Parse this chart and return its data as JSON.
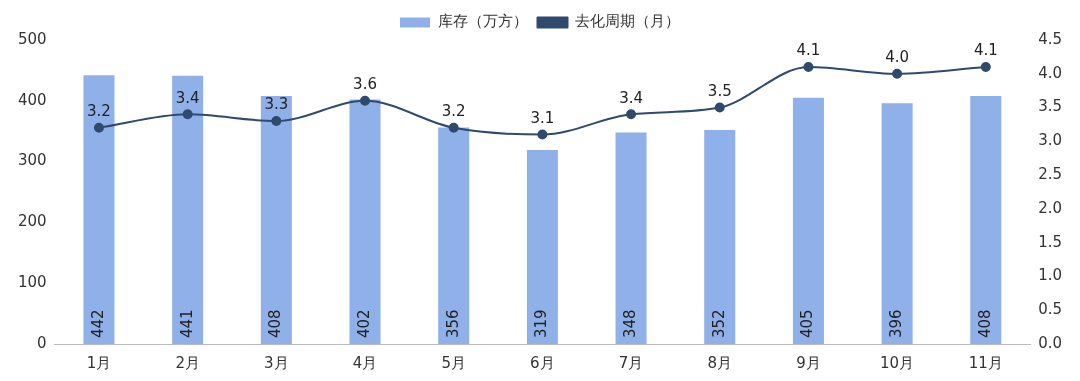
{
  "chart_data": {
    "type": "bar",
    "categories": [
      "1月",
      "2月",
      "3月",
      "4月",
      "5月",
      "6月",
      "7月",
      "8月",
      "9月",
      "10月",
      "11月"
    ],
    "series": [
      {
        "name": "库存（万方）",
        "color": "#8fb0e8",
        "values": [
          442,
          441,
          408,
          402,
          356,
          319,
          348,
          352,
          405,
          396,
          408
        ]
      },
      {
        "name": "去化周期（月）",
        "type": "line",
        "axis": "y2",
        "color": "#2f4a6d",
        "values": [
          3.2,
          3.4,
          3.3,
          3.6,
          3.2,
          3.1,
          3.4,
          3.5,
          4.1,
          4.0,
          4.1
        ],
        "value_labels": [
          "3.2",
          "3.4",
          "3.3",
          "3.6",
          "3.2",
          "3.1",
          "3.4",
          "3.5",
          "4.1",
          "4.0",
          "4.1"
        ]
      }
    ],
    "ylim": [
      0,
      500
    ],
    "yticks": [
      0,
      100,
      200,
      300,
      400,
      500
    ],
    "y2lim": [
      0,
      4.5
    ],
    "y2ticks": [
      {
        "value": 0,
        "label": "0.0"
      },
      {
        "value": 0.5,
        "label": "0.5"
      },
      {
        "value": 1,
        "label": "1.0"
      },
      {
        "value": 1.5,
        "label": "1.5"
      },
      {
        "value": 2,
        "label": "2.0"
      },
      {
        "value": 2.5,
        "label": "2.5"
      },
      {
        "value": 3,
        "label": "3.0"
      },
      {
        "value": 3.5,
        "label": "3.5"
      },
      {
        "value": 4,
        "label": "4.0"
      },
      {
        "value": 4.5,
        "label": "4.5"
      }
    ],
    "data_labels": true,
    "legend": "top",
    "grid": false,
    "marker": "circle",
    "line_style": "solid"
  }
}
